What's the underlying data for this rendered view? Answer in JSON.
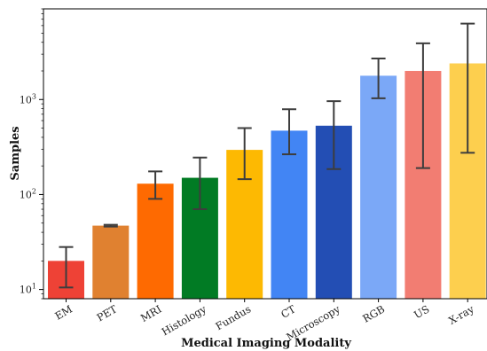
{
  "chart_data": {
    "type": "bar",
    "title": "",
    "xlabel": "Medical Imaging Modality",
    "ylabel": "Samples",
    "yscale": "log",
    "ylim": [
      8,
      9000
    ],
    "yticks": [
      {
        "value": 10,
        "base": "10",
        "exp": "1"
      },
      {
        "value": 100,
        "base": "10",
        "exp": "2"
      },
      {
        "value": 1000,
        "base": "10",
        "exp": "3"
      }
    ],
    "grid": false,
    "categories": [
      "EM",
      "PET",
      "MRI",
      "Histology",
      "Fundus",
      "CT",
      "Microscopy",
      "RGB",
      "US",
      "X-ray"
    ],
    "values": [
      20,
      47,
      130,
      150,
      295,
      470,
      530,
      1780,
      2000,
      2400
    ],
    "error_low": [
      10.5,
      46,
      90,
      70,
      145,
      265,
      185,
      1030,
      190,
      275
    ],
    "error_high": [
      28,
      48,
      175,
      245,
      500,
      790,
      960,
      2700,
      3900,
      6300
    ],
    "colors": [
      "#ee4236",
      "#e08130",
      "#fe6a01",
      "#017b24",
      "#fdb902",
      "#4285f4",
      "#234eb4",
      "#7ba8f7",
      "#f27d72",
      "#fdcf4e"
    ]
  }
}
